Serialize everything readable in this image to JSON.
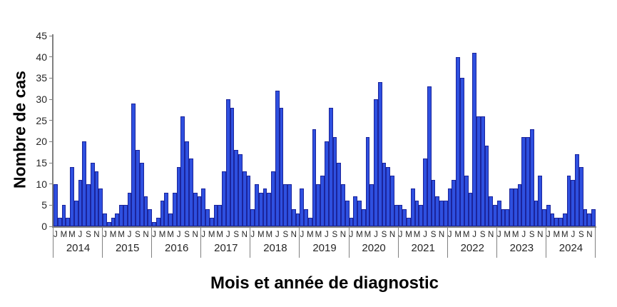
{
  "chart_data": {
    "type": "bar",
    "title": "",
    "xlabel": "Mois et année de diagnostic",
    "ylabel": "Nombre de cas",
    "ylim": [
      0,
      45
    ],
    "yticks": [
      0,
      5,
      10,
      15,
      20,
      25,
      30,
      35,
      40,
      45
    ],
    "grid": false,
    "legend": false,
    "month_tick_labels": [
      "J",
      "M",
      "M",
      "J",
      "S",
      "N"
    ],
    "month_tick_positions": [
      0,
      2,
      4,
      6,
      8,
      10
    ],
    "categories_note": "12 monthly bars per year, Jan-Dec",
    "bar_fill_color": "#2E50E0",
    "bar_border_color": "#1B249B",
    "axis_color": "#808080",
    "text_color": "#262626",
    "series": [
      {
        "year": "2014",
        "values": [
          10,
          2,
          5,
          2,
          14,
          6,
          11,
          20,
          10,
          15,
          13,
          9
        ]
      },
      {
        "year": "2015",
        "values": [
          3,
          1,
          2,
          3,
          5,
          5,
          8,
          29,
          18,
          15,
          7,
          4
        ]
      },
      {
        "year": "2016",
        "values": [
          1,
          2,
          6,
          8,
          3,
          8,
          14,
          26,
          20,
          16,
          8,
          7
        ]
      },
      {
        "year": "2017",
        "values": [
          9,
          4,
          2,
          5,
          5,
          13,
          30,
          28,
          18,
          17,
          13,
          12
        ]
      },
      {
        "year": "2018",
        "values": [
          4,
          10,
          8,
          9,
          8,
          13,
          32,
          28,
          10,
          10,
          4,
          3
        ]
      },
      {
        "year": "2019",
        "values": [
          9,
          4,
          2,
          23,
          10,
          12,
          20,
          28,
          21,
          15,
          10,
          6
        ]
      },
      {
        "year": "2020",
        "values": [
          2,
          7,
          6,
          4,
          21,
          10,
          30,
          34,
          15,
          14,
          12,
          5
        ]
      },
      {
        "year": "2021",
        "values": [
          5,
          4,
          2,
          9,
          6,
          5,
          16,
          33,
          11,
          7,
          6,
          6
        ]
      },
      {
        "year": "2022",
        "values": [
          9,
          11,
          40,
          35,
          12,
          8,
          41,
          26,
          26,
          19,
          7,
          5
        ]
      },
      {
        "year": "2023",
        "values": [
          6,
          4,
          4,
          9,
          9,
          10,
          21,
          21,
          23,
          6,
          12,
          4
        ]
      },
      {
        "year": "2024",
        "values": [
          5,
          3,
          2,
          2,
          3,
          12,
          11,
          17,
          14,
          4,
          3,
          4
        ]
      }
    ]
  }
}
